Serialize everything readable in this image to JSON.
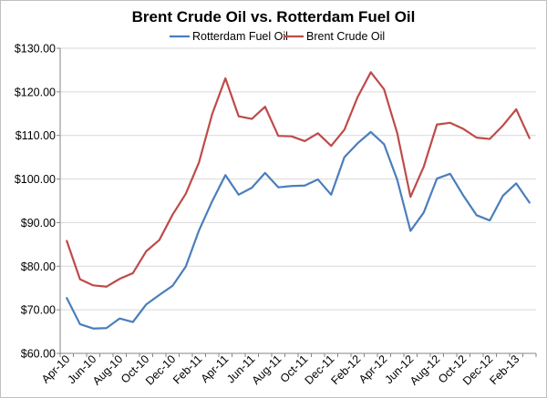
{
  "chart_data": {
    "type": "line",
    "title": "Brent Crude Oil vs. Rotterdam Fuel Oil",
    "xlabel": "",
    "ylabel": "",
    "ylim": [
      60,
      130
    ],
    "yticks": [
      "$60.00",
      "$70.00",
      "$80.00",
      "$90.00",
      "$100.00",
      "$110.00",
      "$120.00",
      "$130.00"
    ],
    "grid": true,
    "legend": "top",
    "x": [
      "Apr-10",
      "May-10",
      "Jun-10",
      "Jul-10",
      "Aug-10",
      "Sep-10",
      "Oct-10",
      "Nov-10",
      "Dec-10",
      "Jan-11",
      "Feb-11",
      "Mar-11",
      "Apr-11",
      "May-11",
      "Jun-11",
      "Jul-11",
      "Aug-11",
      "Sep-11",
      "Oct-11",
      "Nov-11",
      "Dec-11",
      "Jan-12",
      "Feb-12",
      "Mar-12",
      "Apr-12",
      "May-12",
      "Jun-12",
      "Jul-12",
      "Aug-12",
      "Sep-12",
      "Oct-12",
      "Nov-12",
      "Dec-12",
      "Jan-13",
      "Feb-13",
      "Mar-13"
    ],
    "xtick_labels": [
      "Apr-10",
      "Jun-10",
      "Aug-10",
      "Oct-10",
      "Dec-10",
      "Feb-11",
      "Apr-11",
      "Jun-11",
      "Aug-11",
      "Oct-11",
      "Dec-11",
      "Feb-12",
      "Apr-12",
      "Jun-12",
      "Aug-12",
      "Oct-12",
      "Dec-12",
      "Feb-13"
    ],
    "series": [
      {
        "name": "Rotterdam Fuel Oil",
        "color": "#4a7ebb",
        "values": [
          72.7,
          66.7,
          65.7,
          65.8,
          68.0,
          67.2,
          71.2,
          73.4,
          75.5,
          79.9,
          88.2,
          94.9,
          100.9,
          96.4,
          98.0,
          101.4,
          98.1,
          98.4,
          98.5,
          99.9,
          96.4,
          105.0,
          108.2,
          110.8,
          108.0,
          99.8,
          88.1,
          92.3,
          100.1,
          101.2,
          96.2,
          91.7,
          90.5,
          96.2,
          99.0,
          94.6
        ]
      },
      {
        "name": "Brent Crude Oil",
        "color": "#be4b48",
        "values": [
          85.8,
          77.0,
          75.6,
          75.3,
          77.1,
          78.4,
          83.4,
          86.0,
          91.8,
          96.6,
          103.8,
          114.9,
          123.1,
          114.4,
          113.8,
          116.6,
          109.9,
          109.8,
          108.7,
          110.5,
          107.6,
          111.3,
          118.8,
          124.5,
          120.6,
          110.5,
          95.9,
          102.8,
          112.5,
          112.9,
          111.5,
          109.5,
          109.2,
          112.3,
          116.0,
          109.4
        ]
      }
    ]
  }
}
